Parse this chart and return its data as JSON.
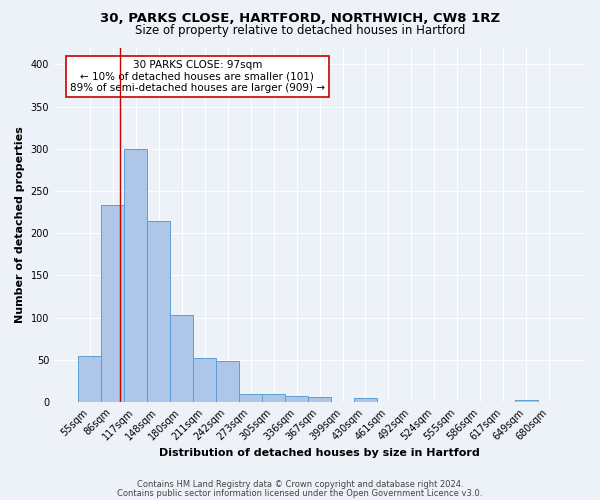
{
  "title_line1": "30, PARKS CLOSE, HARTFORD, NORTHWICH, CW8 1RZ",
  "title_line2": "Size of property relative to detached houses in Hartford",
  "xlabel": "Distribution of detached houses by size in Hartford",
  "ylabel": "Number of detached properties",
  "footnote1": "Contains HM Land Registry data © Crown copyright and database right 2024.",
  "footnote2": "Contains public sector information licensed under the Open Government Licence v3.0.",
  "bar_labels": [
    "55sqm",
    "86sqm",
    "117sqm",
    "148sqm",
    "180sqm",
    "211sqm",
    "242sqm",
    "273sqm",
    "305sqm",
    "336sqm",
    "367sqm",
    "399sqm",
    "430sqm",
    "461sqm",
    "492sqm",
    "524sqm",
    "555sqm",
    "586sqm",
    "617sqm",
    "649sqm",
    "680sqm"
  ],
  "bar_values": [
    54,
    233,
    300,
    215,
    103,
    52,
    49,
    10,
    10,
    7,
    6,
    0,
    5,
    0,
    0,
    0,
    0,
    0,
    0,
    3,
    0
  ],
  "bar_color": "#aec6e8",
  "bar_edge_color": "#5a9fd4",
  "ylim": [
    0,
    420
  ],
  "yticks": [
    0,
    50,
    100,
    150,
    200,
    250,
    300,
    350,
    400
  ],
  "vline_x": 1.32,
  "vline_color": "#cc0000",
  "annotation_text": "30 PARKS CLOSE: 97sqm\n← 10% of detached houses are smaller (101)\n89% of semi-detached houses are larger (909) →",
  "annotation_box_color": "#ffffff",
  "annotation_box_edge": "#cc0000",
  "bg_color": "#edf2f8",
  "plot_bg": "#edf2f8",
  "grid_color": "#ffffff",
  "title_fontsize": 9.5,
  "subtitle_fontsize": 8.5,
  "label_fontsize": 8,
  "tick_fontsize": 7,
  "annot_fontsize": 7.5,
  "footnote_fontsize": 6
}
